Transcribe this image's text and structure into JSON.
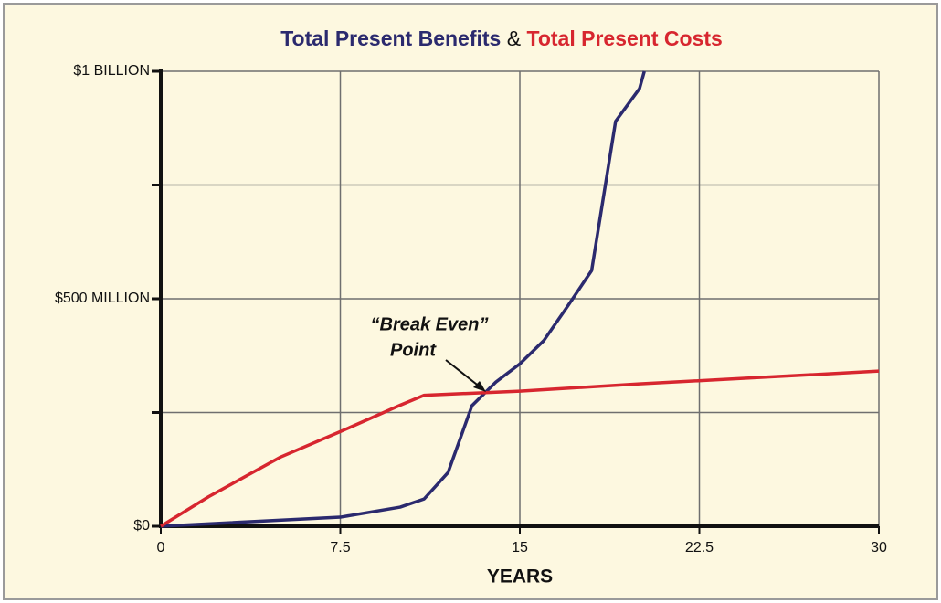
{
  "chart_data": {
    "type": "line",
    "title_connector": "&",
    "x_label": "YEARS",
    "annotation": [
      "“Break Even”",
      "Point"
    ],
    "xlim": [
      0,
      30
    ],
    "xticks": [
      0,
      7.5,
      15,
      22.5,
      30
    ],
    "ylim": [
      0,
      1000
    ],
    "yticks": [
      {
        "value": 0,
        "label": "$0"
      },
      {
        "value": 250,
        "label": null
      },
      {
        "value": 500,
        "label": "$500 MILLION"
      },
      {
        "value": 750,
        "label": null
      },
      {
        "value": 1000,
        "label": "$1 BILLION"
      }
    ],
    "grid": true,
    "series": [
      {
        "name": "Total Present Benefits",
        "color": "#2b2a6e",
        "x": [
          0,
          7.5,
          10,
          11,
          12,
          13,
          14,
          15,
          16,
          17,
          18,
          19,
          20,
          20.2
        ],
        "values": [
          0,
          20,
          42,
          60,
          118,
          265,
          317,
          357,
          408,
          484,
          562,
          890,
          962,
          1000
        ]
      },
      {
        "name": "Total Present Costs",
        "color": "#d7262f",
        "x": [
          0,
          2,
          5,
          7.5,
          10,
          11,
          15,
          20,
          25,
          30
        ],
        "values": [
          0,
          65,
          152,
          208,
          266,
          288,
          297,
          313,
          327,
          341
        ]
      }
    ]
  }
}
